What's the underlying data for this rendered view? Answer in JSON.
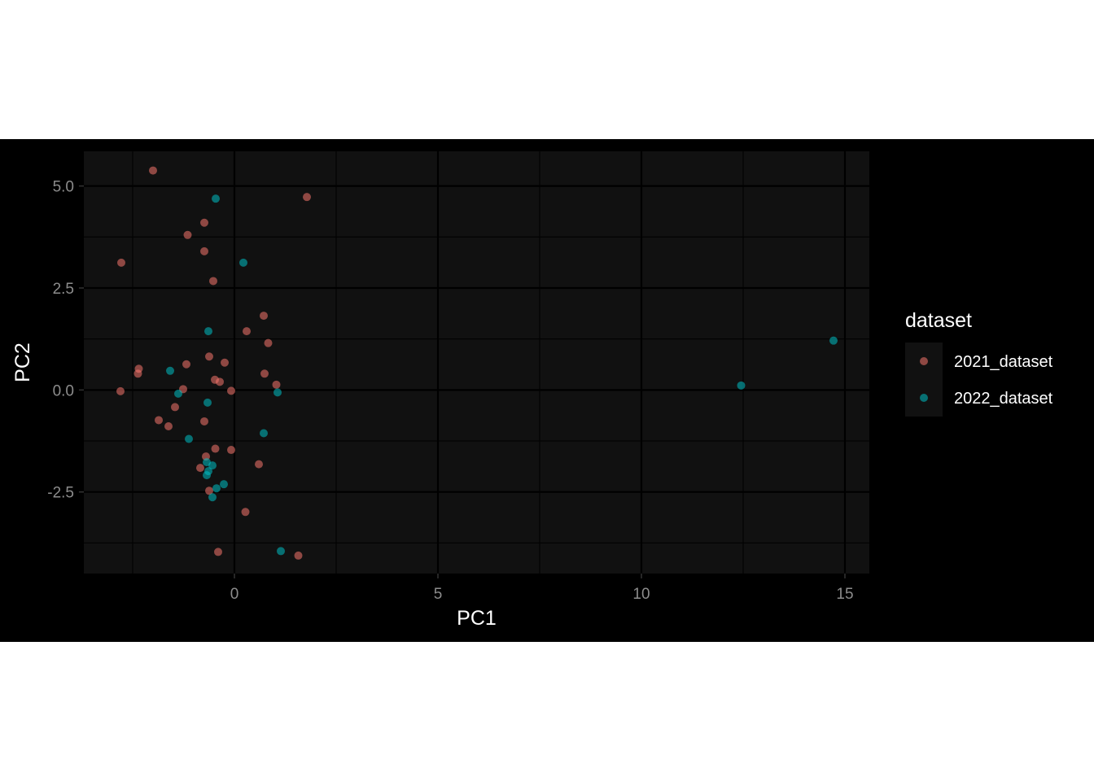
{
  "chart_data": {
    "type": "scatter",
    "title": "",
    "xlabel": "PC1",
    "ylabel": "PC2",
    "xlim": [
      -3.7,
      15.6
    ],
    "ylim": [
      -4.5,
      5.85
    ],
    "x_ticks": [
      0,
      5,
      10,
      15
    ],
    "x_tick_labels": [
      "0",
      "5",
      "10",
      "15"
    ],
    "y_ticks": [
      -2.5,
      0,
      2.5,
      5
    ],
    "y_tick_labels": [
      "-2.5",
      "0.0",
      "2.5",
      "5.0"
    ],
    "grid": true,
    "legend": {
      "title": "dataset",
      "placement": "right"
    },
    "series": [
      {
        "name": "2021_dataset",
        "color": "#f8766d",
        "points": [
          [
            -2.0,
            5.38
          ],
          [
            1.78,
            4.73
          ],
          [
            -0.74,
            4.1
          ],
          [
            -1.15,
            3.8
          ],
          [
            -0.74,
            3.4
          ],
          [
            -2.78,
            3.12
          ],
          [
            -0.52,
            2.67
          ],
          [
            0.72,
            1.82
          ],
          [
            0.3,
            1.44
          ],
          [
            0.83,
            1.15
          ],
          [
            -0.62,
            0.82
          ],
          [
            -0.24,
            0.67
          ],
          [
            -1.18,
            0.63
          ],
          [
            -2.35,
            0.52
          ],
          [
            -2.37,
            0.4
          ],
          [
            0.74,
            0.4
          ],
          [
            -0.48,
            0.25
          ],
          [
            -0.36,
            0.2
          ],
          [
            1.03,
            0.13
          ],
          [
            -1.26,
            0.02
          ],
          [
            -0.08,
            -0.02
          ],
          [
            -2.8,
            -0.03
          ],
          [
            -1.46,
            -0.42
          ],
          [
            -1.86,
            -0.74
          ],
          [
            -0.74,
            -0.77
          ],
          [
            -1.62,
            -0.89
          ],
          [
            -0.47,
            -1.44
          ],
          [
            -0.08,
            -1.47
          ],
          [
            -0.7,
            -1.63
          ],
          [
            0.6,
            -1.82
          ],
          [
            -0.84,
            -1.91
          ],
          [
            -0.62,
            -2.47
          ],
          [
            0.27,
            -2.99
          ],
          [
            -0.4,
            -3.97
          ],
          [
            1.57,
            -4.06
          ]
        ]
      },
      {
        "name": "2022_dataset",
        "color": "#00bfc4",
        "points": [
          [
            -0.46,
            4.69
          ],
          [
            0.22,
            3.12
          ],
          [
            -0.64,
            1.44
          ],
          [
            -1.58,
            0.47
          ],
          [
            -1.38,
            -0.09
          ],
          [
            1.06,
            -0.06
          ],
          [
            -0.66,
            -0.31
          ],
          [
            -1.12,
            -1.2
          ],
          [
            0.72,
            -1.06
          ],
          [
            -0.68,
            -1.77
          ],
          [
            -0.54,
            -1.85
          ],
          [
            -0.64,
            -1.99
          ],
          [
            -0.68,
            -2.09
          ],
          [
            -0.26,
            -2.31
          ],
          [
            -0.44,
            -2.41
          ],
          [
            -0.54,
            -2.63
          ],
          [
            1.14,
            -3.95
          ],
          [
            12.45,
            0.11
          ],
          [
            14.72,
            1.21
          ]
        ]
      }
    ]
  }
}
